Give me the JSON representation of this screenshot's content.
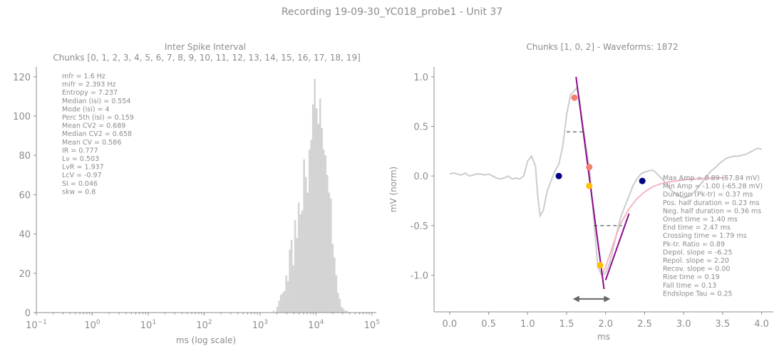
{
  "figure_title": "Recording 19-09-30_YC018_probe1 - Unit 37",
  "colors": {
    "text": "#8c8c8c",
    "hist": "#d3d3d3",
    "waveform": "#cccccc",
    "fit": "#f4b6c2",
    "slope": "#8b0a8b",
    "dash": "#808080",
    "arrow": "#666666"
  },
  "chart_data": [
    {
      "type": "bar",
      "title": "Inter Spike Interval",
      "subtitle": "Chunks [0, 1, 2, 3, 4, 5, 6, 7, 8, 9, 10, 11, 12, 13, 14, 15, 16, 17, 18, 19]",
      "xlabel": "ms (log scale)",
      "ylabel": "",
      "xscale": "log",
      "xlim": [
        0.1,
        120000
      ],
      "ylim": [
        0,
        125
      ],
      "xticks": [
        {
          "v": 0.1,
          "base": "10",
          "exp": "−1"
        },
        {
          "v": 1,
          "base": "10",
          "exp": "0"
        },
        {
          "v": 10,
          "base": "10",
          "exp": "1"
        },
        {
          "v": 100,
          "base": "10",
          "exp": "2"
        },
        {
          "v": 1000,
          "base": "10",
          "exp": "3"
        },
        {
          "v": 10000,
          "base": "10",
          "exp": "4"
        },
        {
          "v": 100000,
          "base": "10",
          "exp": "5"
        }
      ],
      "yticks": [
        0,
        20,
        40,
        60,
        80,
        100,
        120
      ],
      "bin_edges": [
        1690,
        1820,
        1960,
        2110,
        2270,
        2440,
        2630,
        2830,
        3050,
        3280,
        3530,
        3800,
        4090,
        4400,
        4740,
        5100,
        5490,
        5910,
        6360,
        6850,
        7370,
        7940,
        8540,
        9200,
        9900,
        10660,
        11470,
        12350,
        13290,
        14310,
        15400,
        16580,
        17850,
        19210,
        20680,
        22260,
        23960,
        25790,
        27760,
        29880,
        32170,
        34630,
        37270,
        40120,
        43190,
        46490,
        50040,
        53860,
        57980,
        62410,
        67180,
        72320,
        77850
      ],
      "counts": [
        1,
        0,
        3,
        6,
        9,
        10,
        11,
        19,
        16,
        32,
        37,
        24,
        47,
        38,
        56,
        50,
        52,
        78,
        69,
        61,
        83,
        88,
        106,
        119,
        104,
        96,
        109,
        94,
        83,
        80,
        70,
        61,
        58,
        35,
        28,
        19,
        10,
        7,
        3,
        2,
        1,
        1,
        0,
        0,
        0,
        0,
        0,
        0,
        0,
        0,
        0,
        0
      ],
      "stats": [
        "mfr = 1.6 Hz",
        "mifr = 2.393 Hz",
        "Entropy = 7.237",
        "Median (isi) = 0.554",
        "Mode (isi) = 4",
        "Perc 5th (isi) = 0.159",
        "Mean CV2 = 0.689",
        "Median CV2 = 0.658",
        "Mean CV = 0.586",
        "IR = 0.777",
        "Lv = 0.503",
        "LvR = 1.937",
        "LcV = -0.97",
        "SI = 0.046",
        "skw = 0.8"
      ]
    },
    {
      "type": "line",
      "title": "Chunks [1, 0, 2] - Waveforms: 1872",
      "xlabel": "ms",
      "ylabel": "mV (norm)",
      "xlim": [
        -0.2,
        4.15
      ],
      "ylim": [
        -1.37,
        1.1
      ],
      "xticks": [
        "0.0",
        "0.5",
        "1.0",
        "1.5",
        "2.0",
        "2.5",
        "3.0",
        "3.5",
        "4.0"
      ],
      "yticks": [
        "1.0",
        "0.5",
        "0.0",
        "-0.5",
        "-1.0"
      ],
      "waveform": {
        "x": [
          0.0,
          0.05,
          0.1,
          0.15,
          0.2,
          0.25,
          0.3,
          0.35,
          0.4,
          0.45,
          0.5,
          0.55,
          0.6,
          0.65,
          0.7,
          0.75,
          0.8,
          0.85,
          0.9,
          0.95,
          1.0,
          1.05,
          1.1,
          1.13,
          1.16,
          1.2,
          1.25,
          1.3,
          1.35,
          1.4,
          1.45,
          1.5,
          1.55,
          1.6,
          1.63,
          1.66,
          1.7,
          1.75,
          1.8,
          1.85,
          1.9,
          1.95,
          2.0,
          2.05,
          2.1,
          2.15,
          2.2,
          2.25,
          2.3,
          2.35,
          2.4,
          2.45,
          2.5,
          2.55,
          2.6,
          2.65,
          2.7,
          2.75,
          2.8,
          2.85,
          2.9,
          2.95,
          3.0,
          3.05,
          3.1,
          3.15,
          3.2,
          3.25,
          3.3,
          3.35,
          3.4,
          3.45,
          3.5,
          3.55,
          3.6,
          3.65,
          3.7,
          3.75,
          3.8,
          3.85,
          3.9,
          3.95,
          4.0
        ],
        "y": [
          0.02,
          0.03,
          0.02,
          0.01,
          0.03,
          0.0,
          0.01,
          0.02,
          0.02,
          0.01,
          0.02,
          0.0,
          -0.02,
          -0.03,
          -0.02,
          0.0,
          -0.03,
          -0.02,
          -0.03,
          0.0,
          0.15,
          0.2,
          0.1,
          -0.2,
          -0.4,
          -0.35,
          -0.15,
          -0.05,
          0.05,
          0.12,
          0.3,
          0.62,
          0.82,
          0.86,
          0.89,
          0.8,
          0.55,
          0.3,
          0.02,
          -0.45,
          -0.92,
          -1.0,
          -0.98,
          -0.88,
          -0.72,
          -0.55,
          -0.4,
          -0.3,
          -0.2,
          -0.1,
          -0.03,
          0.02,
          0.04,
          0.05,
          0.06,
          0.03,
          -0.01,
          -0.05,
          -0.1,
          -0.15,
          -0.18,
          -0.2,
          -0.22,
          -0.21,
          -0.19,
          -0.15,
          -0.1,
          -0.05,
          0.0,
          0.05,
          0.08,
          0.12,
          0.15,
          0.18,
          0.19,
          0.2,
          0.2,
          0.21,
          0.22,
          0.24,
          0.26,
          0.28,
          0.27
        ]
      },
      "fit_curve": {
        "x": [
          1.95,
          2.0,
          2.05,
          2.1,
          2.15,
          2.2,
          2.3,
          2.4,
          2.5,
          2.6,
          2.7,
          2.8,
          2.9,
          3.0,
          3.1,
          3.2,
          3.3,
          3.4,
          3.5,
          3.55
        ],
        "y": [
          -1.0,
          -0.92,
          -0.8,
          -0.68,
          -0.57,
          -0.47,
          -0.33,
          -0.23,
          -0.16,
          -0.11,
          -0.08,
          -0.06,
          -0.05,
          -0.04,
          -0.03,
          -0.03,
          -0.02,
          -0.02,
          -0.02,
          -0.02
        ]
      },
      "slope_lines": [
        {
          "x": [
            1.62,
            1.98
          ],
          "y": [
            1.0,
            -1.14
          ]
        },
        {
          "x": [
            2.0,
            2.3
          ],
          "y": [
            -1.05,
            -0.38
          ]
        }
      ],
      "half_width_lines": [
        {
          "x": [
            1.5,
            1.73
          ],
          "y": [
            0.445,
            0.445
          ]
        },
        {
          "x": [
            1.85,
            2.21
          ],
          "y": [
            -0.5,
            -0.5
          ]
        }
      ],
      "markers": [
        {
          "x": 1.6,
          "y": 0.79,
          "color": "#f08070"
        },
        {
          "x": 1.4,
          "y": 0.0,
          "color": "#000080"
        },
        {
          "x": 1.79,
          "y": 0.09,
          "color": "#f08070"
        },
        {
          "x": 1.79,
          "y": -0.1,
          "color": "#ffc000"
        },
        {
          "x": 1.93,
          "y": -0.9,
          "color": "#ffc000"
        },
        {
          "x": 2.47,
          "y": -0.05,
          "color": "#000080"
        }
      ],
      "arrow": {
        "x": [
          1.58,
          2.06
        ],
        "y": -1.24
      },
      "stats": [
        "Max Amp = 0.89 (57.84 mV)",
        "Min Amp = -1.00 (-65.28 mV)",
        "Duration (Pk-tr) = 0.37 ms",
        "Pos. half duration = 0.23 ms",
        "Neg. half duration = 0.36 ms",
        "Onset time = 1.40 ms",
        "End time = 2.47 ms",
        "Crossing time = 1.79 ms",
        "Pk-tr. Ratio = 0.89",
        "Depol. slope = -6.25",
        "Repol. slope = 2.20",
        "Recov. slope = 0.00",
        "Rise time = 0.19",
        "Fall time = 0.13",
        "Endslope Tau = 0.25"
      ]
    }
  ]
}
